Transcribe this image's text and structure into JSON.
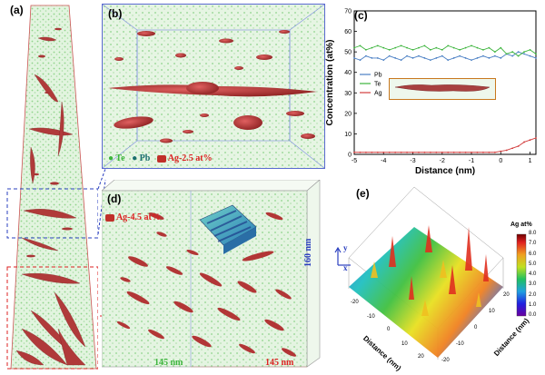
{
  "panels": {
    "a": {
      "label": "(a)"
    },
    "b": {
      "label": "(b)",
      "legend_te": "Te",
      "legend_pb": "Pb",
      "legend_ag": "Ag-2.5 at%"
    },
    "c": {
      "label": "(c)"
    },
    "d": {
      "label": "(d)",
      "legend_ag": "Ag-4.5 at%",
      "dim_height": "160 nm",
      "dim_width": "145 nm",
      "dim_depth": "145 nm"
    },
    "e": {
      "label": "(e)",
      "colorbar_title": "Ag at%",
      "colorbar_ticks": [
        "8.0",
        "7.0",
        "6.0",
        "5.0",
        "4.0",
        "3.0",
        "2.0",
        "1.0",
        "0.0"
      ],
      "axis_y_label": "Distance (nm)",
      "axis_x_label": "Distance (nm)",
      "axis_left_ticks": [
        "20",
        "10",
        "0",
        "-10",
        "-20"
      ],
      "axis_right_ticks": [
        "-20",
        "-10",
        "0",
        "10",
        "20"
      ],
      "mini_axes": {
        "y": "y",
        "x": "x"
      }
    }
  },
  "chart_data": {
    "type": "line",
    "xlabel": "Distance (nm)",
    "ylabel": "Concentration (at%)",
    "xlim": [
      -5,
      1.2
    ],
    "ylim": [
      0,
      70
    ],
    "x_ticks": [
      "-5",
      "-4",
      "-3",
      "-2",
      "-1",
      "0",
      "1"
    ],
    "y_ticks": [
      "0",
      "10",
      "20",
      "30",
      "40",
      "50",
      "60",
      "70"
    ],
    "legend_position": "left-middle",
    "series": [
      {
        "name": "Pb",
        "color": "#4a7fc4",
        "x": [
          -5,
          -4.8,
          -4.6,
          -4.4,
          -4.2,
          -4.0,
          -3.8,
          -3.6,
          -3.4,
          -3.2,
          -3.0,
          -2.8,
          -2.6,
          -2.4,
          -2.2,
          -2.0,
          -1.8,
          -1.6,
          -1.4,
          -1.2,
          -1.0,
          -0.8,
          -0.6,
          -0.4,
          -0.2,
          0.0,
          0.2,
          0.4,
          0.6,
          0.8,
          1.0,
          1.2
        ],
        "y": [
          47,
          46,
          48,
          47,
          47,
          46,
          48,
          47,
          46,
          48,
          47,
          48,
          47,
          46,
          47,
          48,
          46,
          47,
          48,
          47,
          46,
          47,
          48,
          47,
          48,
          47,
          49,
          48,
          50,
          49,
          48,
          47
        ]
      },
      {
        "name": "Te",
        "color": "#3cb43c",
        "x": [
          -5,
          -4.8,
          -4.6,
          -4.4,
          -4.2,
          -4.0,
          -3.8,
          -3.6,
          -3.4,
          -3.2,
          -3.0,
          -2.8,
          -2.6,
          -2.4,
          -2.2,
          -2.0,
          -1.8,
          -1.6,
          -1.4,
          -1.2,
          -1.0,
          -0.8,
          -0.6,
          -0.4,
          -0.2,
          0.0,
          0.2,
          0.4,
          0.6,
          0.8,
          1.0,
          1.2
        ],
        "y": [
          52,
          53,
          51,
          52,
          53,
          52,
          51,
          52,
          53,
          52,
          51,
          52,
          53,
          51,
          52,
          51,
          53,
          52,
          51,
          52,
          53,
          52,
          51,
          52,
          50,
          52,
          49,
          50,
          48,
          50,
          51,
          49
        ]
      },
      {
        "name": "Ag",
        "color": "#d23c3c",
        "x": [
          -5,
          -4.8,
          -4.6,
          -4.4,
          -4.2,
          -4.0,
          -3.8,
          -3.6,
          -3.4,
          -3.2,
          -3.0,
          -2.8,
          -2.6,
          -2.4,
          -2.2,
          -2.0,
          -1.8,
          -1.6,
          -1.4,
          -1.2,
          -1.0,
          -0.8,
          -0.6,
          -0.4,
          -0.2,
          0.0,
          0.2,
          0.4,
          0.6,
          0.8,
          1.0,
          1.2
        ],
        "y": [
          1,
          1,
          1,
          1,
          1,
          1,
          1,
          1,
          1,
          1,
          1,
          1,
          1,
          1,
          1,
          1,
          1,
          1,
          1,
          1,
          1,
          1,
          1,
          1,
          1,
          1.5,
          2,
          3,
          4,
          6,
          7,
          8
        ]
      }
    ]
  }
}
